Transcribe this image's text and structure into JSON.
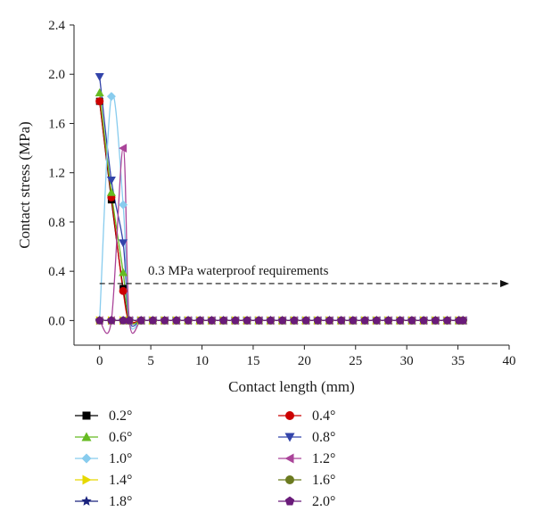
{
  "chart_data": {
    "type": "line",
    "title": "",
    "xlabel": "Contact length (mm)",
    "ylabel": "Contact stress (MPa)",
    "xlim": [
      -2.5,
      40
    ],
    "ylim": [
      -0.2,
      2.4
    ],
    "xticks": [
      0,
      5,
      10,
      15,
      20,
      25,
      30,
      35,
      40
    ],
    "yticks": [
      0.0,
      0.4,
      0.8,
      1.2,
      1.6,
      2.0,
      2.4
    ],
    "xtick_labels": [
      "0",
      "5",
      "10",
      "15",
      "20",
      "25",
      "30",
      "35",
      "40"
    ],
    "ytick_labels": [
      "0.0",
      "0.4",
      "0.8",
      "1.2",
      "1.6",
      "2.0",
      "2.4"
    ],
    "grid": false,
    "legend_position": "bottom",
    "annotation": {
      "text": "0.3 MPa waterproof requirements",
      "y": 0.3,
      "style": "dashed-arrow"
    },
    "x_tail": [
      2.9,
      4.05,
      5.2,
      6.35,
      7.5,
      8.65,
      9.8,
      10.95,
      12.1,
      13.25,
      14.4,
      15.55,
      16.7,
      17.85,
      19.0,
      20.15,
      21.3,
      22.45,
      23.6,
      24.75,
      25.9,
      27.05,
      28.2,
      29.35,
      30.5,
      31.65,
      32.8,
      33.95,
      35.1,
      35.5
    ],
    "series": [
      {
        "name": "0.2°",
        "color": "#000000",
        "marker": "square",
        "x": [
          0,
          1.15,
          2.3
        ],
        "y": [
          1.78,
          0.98,
          0.26
        ]
      },
      {
        "name": "0.4°",
        "color": "#cc0000",
        "marker": "circle",
        "x": [
          0,
          1.15,
          2.3
        ],
        "y": [
          1.78,
          1.0,
          0.24
        ]
      },
      {
        "name": "0.6°",
        "color": "#66bb22",
        "marker": "triangle-up",
        "x": [
          0,
          1.15,
          2.3
        ],
        "y": [
          1.85,
          1.04,
          0.39
        ]
      },
      {
        "name": "0.8°",
        "color": "#3344aa",
        "marker": "triangle-down",
        "x": [
          0,
          1.15,
          2.3
        ],
        "y": [
          1.98,
          1.14,
          0.63
        ]
      },
      {
        "name": "1.0°",
        "color": "#88ccee",
        "marker": "diamond",
        "x": [
          0,
          1.15,
          2.3
        ],
        "y": [
          0.0,
          1.82,
          0.94
        ]
      },
      {
        "name": "1.2°",
        "color": "#aa4499",
        "marker": "triangle-left",
        "x": [
          0,
          1.15,
          2.3
        ],
        "y": [
          0.0,
          0.0,
          1.4
        ]
      },
      {
        "name": "1.4°",
        "color": "#e6d800",
        "marker": "triangle-right",
        "x": [
          0,
          1.15,
          2.3
        ],
        "y": [
          0.0,
          0.0,
          0.0
        ]
      },
      {
        "name": "1.6°",
        "color": "#6b7a1f",
        "marker": "circle",
        "x": [
          0,
          1.15,
          2.3
        ],
        "y": [
          0.0,
          0.0,
          0.0
        ]
      },
      {
        "name": "1.8°",
        "color": "#1a237e",
        "marker": "star",
        "x": [
          0,
          1.15,
          2.3
        ],
        "y": [
          0.0,
          0.0,
          0.0
        ]
      },
      {
        "name": "2.0°",
        "color": "#6a1b7a",
        "marker": "pentagon",
        "x": [
          0,
          1.15,
          2.3
        ],
        "y": [
          0.0,
          0.0,
          0.0
        ]
      }
    ]
  }
}
